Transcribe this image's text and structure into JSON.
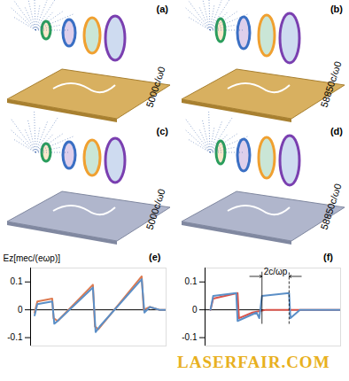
{
  "panels": [
    {
      "label": "(a)",
      "time": "5000c/ω0"
    },
    {
      "label": "(b)",
      "time": "58850c/ω0"
    },
    {
      "label": "(c)",
      "time": "5000c/ω0"
    },
    {
      "label": "(d)",
      "time": "58850c/ω0"
    }
  ],
  "chart_data": [
    {
      "type": "line",
      "title": "(e)",
      "y_label": "Ez[mec/(eωp)]",
      "xlim": [
        0,
        10
      ],
      "ylim": [
        -0.13,
        0.15
      ],
      "yticks": [
        -0.1,
        0,
        0.1
      ],
      "tick_labels": "y",
      "series": [
        {
          "color": "#dd7a50",
          "x": [
            0.3,
            0.5,
            1.6,
            1.7,
            2.0,
            4.6,
            4.75,
            5.0,
            8.2,
            8.35,
            8.8,
            9.5,
            10
          ],
          "values": [
            -0.01,
            0.03,
            0.04,
            -0.03,
            -0.04,
            0.09,
            -0.06,
            -0.07,
            0.12,
            0.0,
            0.01,
            0.0,
            0.0
          ]
        },
        {
          "color": "#5b8fc7",
          "x": [
            0.3,
            0.5,
            1.6,
            1.75,
            2.0,
            4.6,
            4.8,
            5.1,
            8.2,
            8.4,
            8.8,
            9.5,
            10
          ],
          "values": [
            -0.02,
            0.02,
            0.03,
            -0.05,
            -0.04,
            0.08,
            -0.08,
            -0.06,
            0.11,
            -0.01,
            0.01,
            0.0,
            0.0
          ]
        }
      ]
    },
    {
      "type": "line",
      "title": "(f)",
      "xlim": [
        0,
        10
      ],
      "ylim": [
        -0.13,
        0.15
      ],
      "yticks": [
        -0.1,
        0,
        0.1
      ],
      "tick_labels": "y",
      "annotation": {
        "text": "2c/ωp",
        "x": [
          4.2,
          6.2
        ]
      },
      "series": [
        {
          "color": "#d9534a",
          "x": [
            0.4,
            0.6,
            2.4,
            2.5,
            3.5,
            4.5,
            10
          ],
          "values": [
            0.0,
            0.04,
            0.06,
            -0.03,
            -0.01,
            0.0,
            0.0
          ]
        },
        {
          "color": "#5b8fc7",
          "x": [
            0.4,
            0.6,
            2.3,
            2.4,
            3.8,
            4.0,
            4.2,
            6.2,
            6.3,
            7.0,
            10
          ],
          "values": [
            0.0,
            0.05,
            0.06,
            -0.04,
            -0.01,
            -0.03,
            0.05,
            0.06,
            -0.03,
            0.0,
            0.0
          ]
        }
      ]
    }
  ],
  "watermark": "LASERFAIR.COM"
}
